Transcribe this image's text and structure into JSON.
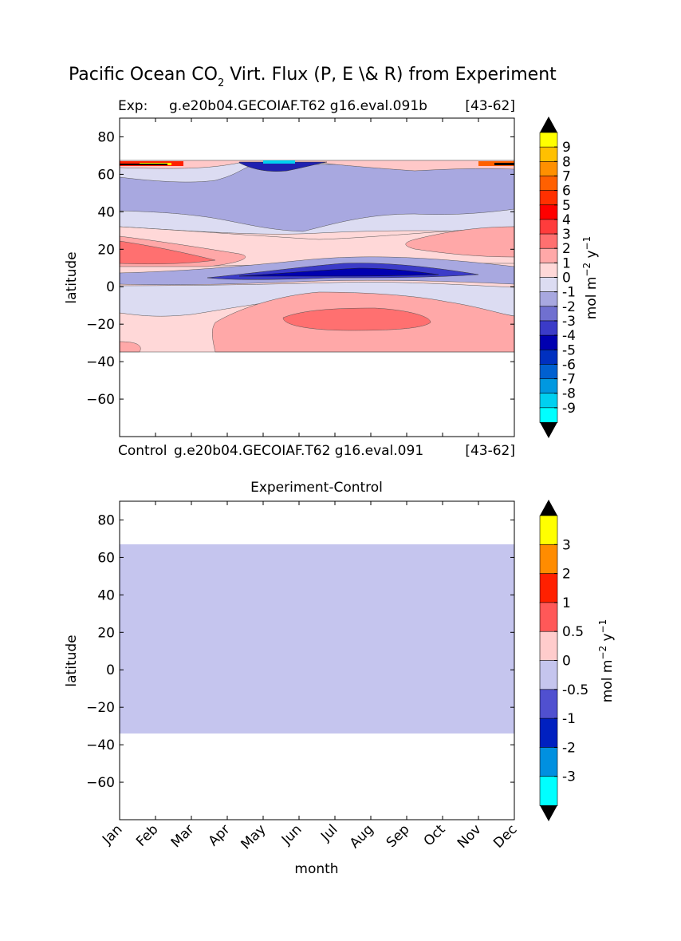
{
  "figure_title": {
    "text": "Pacific Ocean CO",
    "subscript": "2",
    "rest": " Virt. Flux (P, E \\& R) from Experiment"
  },
  "colors": {
    "blue_dark": "#0000b0",
    "blue_mid": "#3b3bc8",
    "blue_light": "#a8a8e0",
    "blue_pale": "#dcdcf2",
    "red_pale": "#ffd8d8",
    "red_light": "#ffa8a8",
    "red_mid": "#ff7070",
    "diff_fill": "#c5c5ee"
  },
  "chart_data": [
    {
      "type": "contour",
      "panel": "top",
      "title_left": "Exp:",
      "title_center": "g.e20b04.GECOIAF.T62 g16.eval.091b",
      "title_right": "[43-62]",
      "bottom_left": "Control",
      "bottom_center": "g.e20b04.GECOIAF.T62 g16.eval.091",
      "bottom_right": "[43-62]",
      "ylabel": "latitude",
      "ylim": [
        -80,
        90
      ],
      "yticks": [
        80,
        60,
        40,
        20,
        0,
        -20,
        -40,
        -60
      ],
      "xlim": [
        0,
        11
      ],
      "data_lat_range": [
        -34,
        67
      ],
      "bands": [
        {
          "lat": [
            57,
            67
          ],
          "level": -1
        },
        {
          "lat": [
            34,
            57
          ],
          "level": -2
        },
        {
          "lat": [
            27,
            34
          ],
          "level": -1
        },
        {
          "lat": [
            14,
            27
          ],
          "level": 1
        },
        {
          "lat": [
            5,
            10
          ],
          "level": -4
        },
        {
          "lat": [
            -34,
            0
          ],
          "level": 0
        }
      ],
      "colorbar": {
        "label": "mol m",
        "label_sup": "−2",
        "label_mid": " y",
        "label_sup2": "−1",
        "levels": [
          "9",
          "8",
          "7",
          "6",
          "5",
          "4",
          "3",
          "2",
          "1",
          "0",
          "-1",
          "-2",
          "-3",
          "-4",
          "-5",
          "-6",
          "-7",
          "-8",
          "-9"
        ],
        "colors": [
          "#ffff00",
          "#ffc000",
          "#ff9000",
          "#ff6000",
          "#ff3000",
          "#ff0000",
          "#ff3c3c",
          "#ff7070",
          "#ffa8a8",
          "#ffd8d8",
          "#dcdcf2",
          "#a8a8e0",
          "#7070d0",
          "#3b3bc8",
          "#0000b0",
          "#0030c0",
          "#0060d0",
          "#0098e0",
          "#00d0f0",
          "#00ffff"
        ]
      }
    },
    {
      "type": "contour",
      "panel": "bottom",
      "title": "Experiment-Control",
      "ylabel": "latitude",
      "xlabel": "month",
      "ylim": [
        -80,
        90
      ],
      "yticks": [
        80,
        60,
        40,
        20,
        0,
        -20,
        -40,
        -60
      ],
      "categories": [
        "Jan",
        "Feb",
        "Mar",
        "Apr",
        "May",
        "Jun",
        "Jul",
        "Aug",
        "Sep",
        "Oct",
        "Nov",
        "Dec"
      ],
      "data_lat_range": [
        -34,
        67
      ],
      "uniform_value_range": [
        -0.5,
        0
      ],
      "colorbar": {
        "label": "mol m",
        "label_sup": "−2",
        "label_mid": " y",
        "label_sup2": "−1",
        "levels": [
          "3",
          "2",
          "1",
          "0.5",
          "0",
          "-0.5",
          "-1",
          "-2",
          "-3"
        ],
        "colors": [
          "#ffff00",
          "#ff8c00",
          "#ff2000",
          "#ff5858",
          "#ffcccc",
          "#c5c5ee",
          "#5050d0",
          "#0020c0",
          "#0090e0",
          "#00ffff"
        ]
      }
    }
  ]
}
